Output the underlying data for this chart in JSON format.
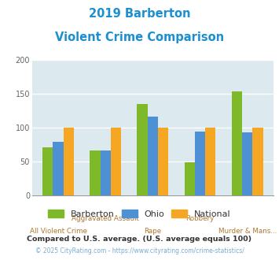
{
  "title_line1": "2019 Barberton",
  "title_line2": "Violent Crime Comparison",
  "title_color": "#1b8fd1",
  "categories_top": [
    "",
    "Aggravated Assault",
    "",
    "Robbery",
    ""
  ],
  "categories_bottom": [
    "All Violent Crime",
    "",
    "Rape",
    "",
    "Murder & Mans..."
  ],
  "series": {
    "Barberton": [
      70,
      66,
      135,
      48,
      153
    ],
    "Ohio": [
      79,
      66,
      116,
      94,
      93
    ],
    "National": [
      100,
      100,
      100,
      100,
      100
    ]
  },
  "colors": {
    "Barberton": "#7db928",
    "Ohio": "#4d90d4",
    "National": "#f5a623"
  },
  "ylim": [
    0,
    200
  ],
  "yticks": [
    0,
    50,
    100,
    150,
    200
  ],
  "plot_bg": "#dce9ef",
  "grid_color": "#ffffff",
  "xlabel_color": "#b07830",
  "note_text": "Compared to U.S. average. (U.S. average equals 100)",
  "note_color": "#333333",
  "footer_text": "© 2025 CityRating.com - https://www.cityrating.com/crime-statistics/",
  "footer_color": "#7aabcf",
  "bar_width": 0.22
}
